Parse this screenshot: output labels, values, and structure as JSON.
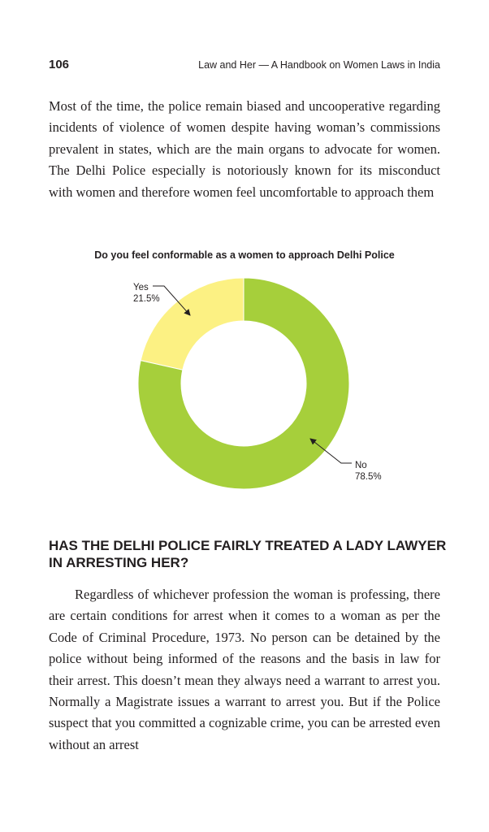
{
  "header": {
    "page_number": "106",
    "running_title": "Law and Her — A Handbook on Women Laws in India"
  },
  "body": {
    "paragraph_1": "Most of the time, the police remain biased and uncooperative regarding incidents of violence of women despite having woman’s commissions prevalent in states, which are the main organs to advocate for women. The Delhi Police especially is notoriously known for its misconduct with women and therefore women feel uncomfortable to approach them",
    "section_heading": "HAS THE DELHI POLICE FAIRLY TREATED A LADY LAWYER IN ARRESTING HER?",
    "paragraph_2": "Regardless of whichever profession the woman is professing, there are certain conditions for arrest when it comes to a woman as per the Code of Criminal Procedure, 1973. No person can be detained by the police without being informed of the reasons and the basis in law for their arrest. This doesn’t mean they always need a warrant to arrest you. Normally a Magistrate issues a warrant to arrest you. But if the Police suspect that you committed a cognizable crime, you can be arrested even without an arrest"
  },
  "chart_data": {
    "type": "pie",
    "variant": "donut",
    "title": "Do you feel conformable as a women to approach Delhi Police",
    "slices": [
      {
        "label": "Yes",
        "value": 21.5,
        "value_label": "21.5%",
        "color": "#fcf183"
      },
      {
        "label": "No",
        "value": 78.5,
        "value_label": "78.5%",
        "color": "#a6cf3b"
      }
    ],
    "start_angle": "12 o'clock",
    "direction": "counterclockwise for Yes",
    "legend": "none (callout labels with arrows)"
  }
}
